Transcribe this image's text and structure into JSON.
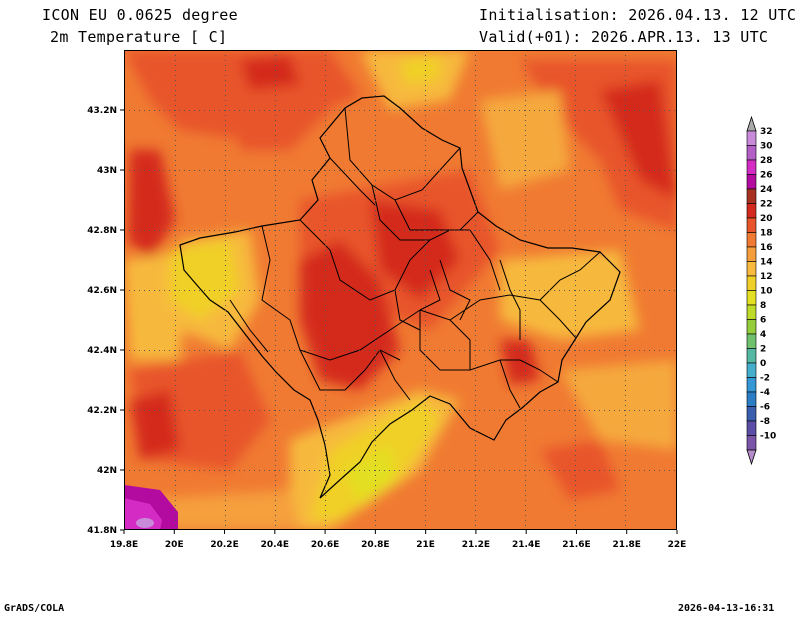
{
  "header": {
    "model": "ICON EU 0.0625 degree",
    "variable": "2m Temperature [ C]",
    "init": "Initialisation: 2026.04.13. 12 UTC",
    "valid": "Valid(+01): 2026.APR.13. 13 UTC"
  },
  "footer": {
    "left": "GrADS/COLA",
    "right": "2026-04-13-16:31"
  },
  "chart_data": {
    "type": "heatmap",
    "xlabels": [
      "19.8E",
      "20E",
      "20.2E",
      "20.4E",
      "20.6E",
      "20.8E",
      "21E",
      "21.2E",
      "21.4E",
      "21.6E",
      "21.8E",
      "22E"
    ],
    "ylabels": [
      "41.8N",
      "42N",
      "42.2N",
      "42.4N",
      "42.6N",
      "42.8N",
      "43N",
      "43.2N"
    ],
    "xlim": [
      19.8,
      22.0
    ],
    "ylim": [
      41.8,
      43.4
    ],
    "grid": true,
    "colorbar": {
      "levels": [
        "32",
        "30",
        "28",
        "26",
        "24",
        "22",
        "20",
        "18",
        "16",
        "14",
        "12",
        "10",
        "8",
        "6",
        "4",
        "2",
        "0",
        "-2",
        "-4",
        "-6",
        "-8",
        "-10"
      ],
      "colors": [
        "#c98ad9",
        "#b35fc7",
        "#d42bc4",
        "#b30aa0",
        "#a83222",
        "#d42a1e",
        "#e8552a",
        "#f07a32",
        "#f59f3c",
        "#f7b93e",
        "#f0d028",
        "#e3df22",
        "#bedb2a",
        "#95ce3a",
        "#6fc16e",
        "#55b8a3",
        "#46aecd",
        "#3498d6",
        "#2b7dc4",
        "#3a5fae",
        "#5a4ea6",
        "#7a55aa"
      ],
      "top_color": "#aaaaaa",
      "bottom_color": "#b48ac8"
    }
  }
}
